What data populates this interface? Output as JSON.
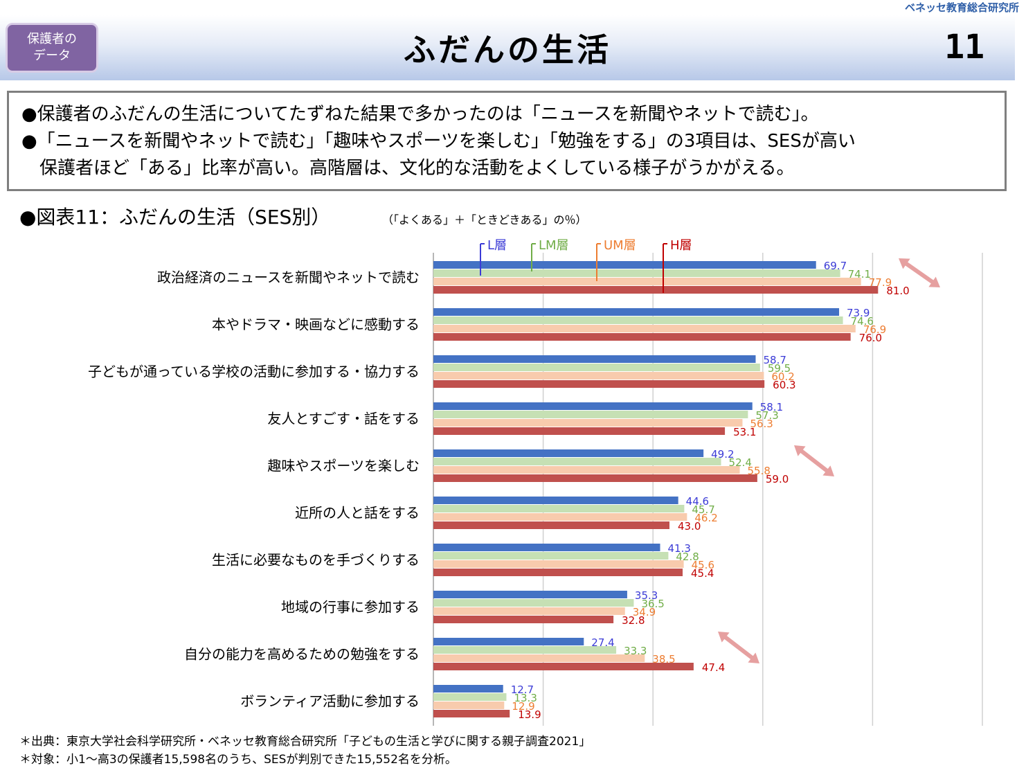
{
  "header": {
    "org": "ベネッセ教育総合研究所",
    "badge_line1": "保護者の",
    "badge_line2": "データ",
    "title": "ふだんの生活",
    "page_number": "11"
  },
  "summary": {
    "line1": "●保護者のふだんの生活についてたずねた結果で多かったのは「ニュースを新聞やネットで読む」。",
    "line2": "●「ニュースを新聞やネットで読む」「趣味やスポーツを楽しむ」「勉強をする」の3項目は、SESが高い",
    "line3": "　保護者ほど「ある」比率が高い。高階層は、文化的な活動をよくしている様子がうかがえる。"
  },
  "figure": {
    "title": "●図表11：ふだんの生活（SES別）",
    "note": "（「よくある」＋「ときどきある」の％）"
  },
  "chart_data": {
    "type": "bar",
    "orientation": "horizontal",
    "categories": [
      "政治経済のニュースを新聞やネットで読む",
      "本やドラマ・映画などに感動する",
      "子どもが通っている学校の活動に参加する・協力する",
      "友人とすごす・話をする",
      "趣味やスポーツを楽しむ",
      "近所の人と話をする",
      "生活に必要なものを手づくりする",
      "地域の行事に参加する",
      "自分の能力を高めるための勉強をする",
      "ボランティア活動に参加する"
    ],
    "series": [
      {
        "name": "L層",
        "color": "#4472c4",
        "label_color": "#3b3bd6",
        "values": [
          69.7,
          73.9,
          58.7,
          58.1,
          49.2,
          44.6,
          41.3,
          35.3,
          27.4,
          12.7
        ]
      },
      {
        "name": "LM層",
        "color": "#c6e0b4",
        "label_color": "#70ad47",
        "values": [
          74.1,
          74.6,
          59.5,
          57.3,
          52.4,
          45.7,
          42.8,
          36.5,
          33.3,
          13.3
        ]
      },
      {
        "name": "UM層",
        "color": "#f8cbad",
        "label_color": "#ed7d31",
        "values": [
          77.9,
          76.9,
          60.2,
          56.3,
          55.8,
          46.2,
          45.6,
          34.9,
          38.5,
          12.9
        ]
      },
      {
        "name": "H層",
        "color": "#c0504d",
        "label_color": "#c00000",
        "values": [
          81.0,
          76.0,
          60.3,
          53.1,
          59.0,
          43.0,
          45.4,
          32.8,
          47.4,
          13.9
        ]
      }
    ],
    "xlim": [
      0,
      100
    ],
    "grid": true,
    "legend_position": "top",
    "highlighted_categories": [
      0,
      4,
      8
    ],
    "highlight_color": "#e6a0a0"
  },
  "notes": {
    "source": "＊出典：東京大学社会科学研究所・ベネッセ教育総合研究所「子どもの生活と学びに関する親子調査2021」",
    "target": "＊対象：小1～高3の保護者15,598名のうち、SESが判別できた15,552名を分析。"
  }
}
